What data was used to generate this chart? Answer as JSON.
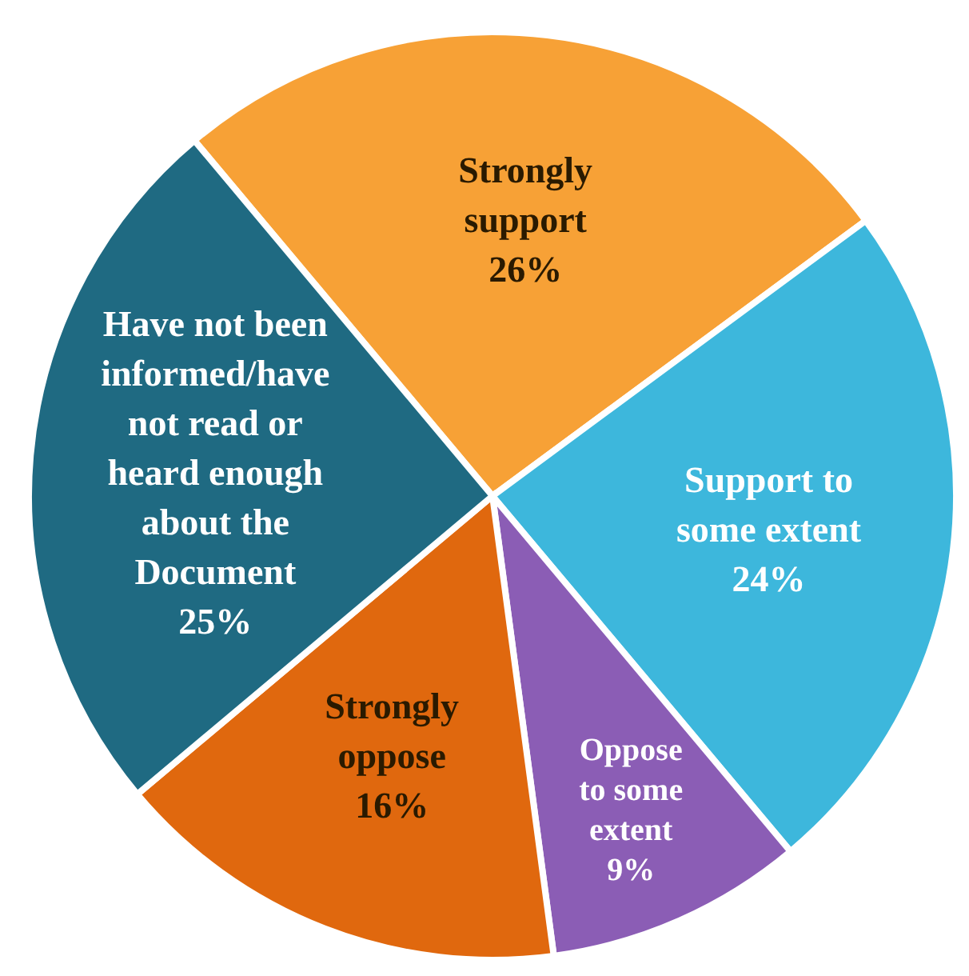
{
  "chart_data": {
    "type": "pie",
    "categories": [
      "Strongly support",
      "Support to some extent",
      "Oppose to some extent",
      "Strongly oppose",
      "Have not been informed/have not read or heard enough about the Document"
    ],
    "values": [
      26,
      24,
      9,
      16,
      25
    ],
    "colors": [
      "#f7a136",
      "#3db7dc",
      "#8b5db5",
      "#e0680e",
      "#1f6a82"
    ],
    "value_labels": [
      "26%",
      "24%",
      "9%",
      "16%",
      "25%"
    ]
  }
}
